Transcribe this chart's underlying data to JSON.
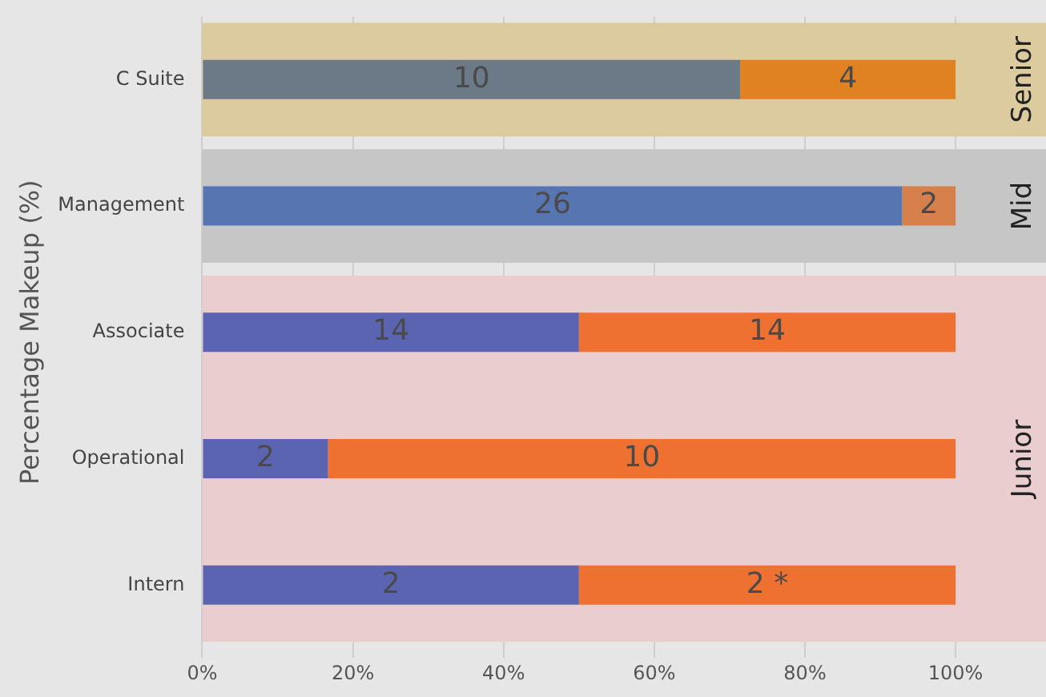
{
  "chart_data": {
    "type": "bar",
    "orientation": "horizontal",
    "stacked": true,
    "ylabel": "Percentage Makeup (%)",
    "categories": [
      "C Suite",
      "Management",
      "Associate",
      "Operational",
      "Intern"
    ],
    "series": [
      {
        "colors": [
          "#6b7a86",
          "#5775b1",
          "#5b64b0",
          "#5b64b0",
          "#5b64b0"
        ],
        "values": [
          71.4,
          92.9,
          50,
          16.7,
          50
        ]
      },
      {
        "colors": [
          "#e08222",
          "#d6804c",
          "#ee7132",
          "#ee7132",
          "#ee7132"
        ],
        "values": [
          28.6,
          7.1,
          50,
          83.3,
          50
        ]
      }
    ],
    "annotations": [
      "10",
      "4",
      "26",
      "2",
      "14",
      "14",
      "2",
      "10",
      "2",
      "2 *"
    ],
    "xlim": [
      0,
      112
    ],
    "xticks": [
      {
        "value": 0,
        "label": "0%"
      },
      {
        "value": 20,
        "label": "20%"
      },
      {
        "value": 40,
        "label": "40%"
      },
      {
        "value": 60,
        "label": "60%"
      },
      {
        "value": 80,
        "label": "80%"
      },
      {
        "value": 100,
        "label": "100%"
      }
    ],
    "bands": [
      {
        "axis": "y",
        "from": "C Suite",
        "to": "C Suite",
        "label": "Senior",
        "color": "#dccb9e"
      },
      {
        "axis": "y",
        "from": "Management",
        "to": "Management",
        "label": "Mid",
        "color": "#c6c6c6"
      },
      {
        "axis": "y",
        "from": "Associate",
        "to": "Intern",
        "label": "Junior",
        "color": "#e9cdcf"
      }
    ],
    "grid": "x",
    "legend": false
  }
}
